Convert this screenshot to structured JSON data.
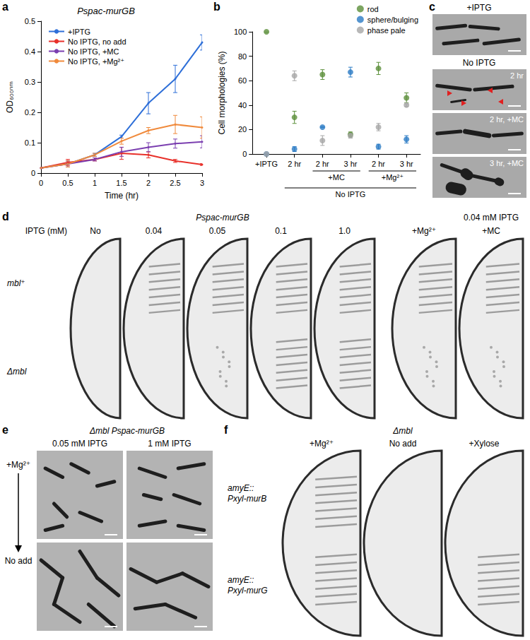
{
  "chart_data": [
    {
      "panel_label": "a",
      "type": "line",
      "title": "Pspac-murGB",
      "xlabel": "Time (hr)",
      "ylabel": "OD₆₀₀ₙₘ",
      "x": [
        0,
        0.5,
        1,
        1.5,
        2,
        2.5,
        3
      ],
      "xlim": [
        0,
        3
      ],
      "xticks": [
        0,
        0.5,
        1,
        1.5,
        2,
        2.5,
        3
      ],
      "ylim": [
        0,
        0.5
      ],
      "yticks": [
        0,
        0.1,
        0.2,
        0.3,
        0.4,
        0.5
      ],
      "grid": false,
      "legend": "upper left",
      "series": [
        {
          "name": "+IPTG",
          "color": "#2e6fd8",
          "values": [
            0.017,
            0.03,
            0.06,
            0.12,
            0.23,
            0.31,
            0.43
          ],
          "errors": [
            0,
            0.01,
            0.005,
            0.005,
            0.035,
            0.045,
            0.025
          ]
        },
        {
          "name": "No IPTG, no add",
          "color": "#e8302a",
          "values": [
            0.017,
            0.035,
            0.045,
            0.065,
            0.06,
            0.04,
            0.028
          ],
          "errors": [
            0,
            0.01,
            0.005,
            0.02,
            0.01,
            0.005,
            0.003
          ]
        },
        {
          "name": "No IPTG, +MC",
          "color": "#7b3fb0",
          "values": [
            0.017,
            0.03,
            0.045,
            0.07,
            0.085,
            0.097,
            0.103
          ],
          "errors": [
            0,
            0.01,
            0.005,
            0.015,
            0.015,
            0.015,
            0.02
          ]
        },
        {
          "name": "No IPTG, +Mg²⁺",
          "color": "#f08a3c",
          "values": [
            0.017,
            0.03,
            0.06,
            0.105,
            0.14,
            0.16,
            0.15
          ],
          "errors": [
            0,
            0.01,
            0.005,
            0.01,
            0.01,
            0.03,
            0.035
          ]
        }
      ]
    },
    {
      "panel_label": "b",
      "type": "scatter",
      "ylabel": "Cell morphologies (%)",
      "categories": [
        "+IPTG",
        "2 hr",
        "2 hr",
        "3 hr",
        "2 hr",
        "3 hr"
      ],
      "category_groups": [
        {
          "label": "No IPTG",
          "from": 1,
          "to": 5,
          "groups": [
            {
              "label": "+MC",
              "from": 2,
              "to": 3
            },
            {
              "label": "+Mg²⁺",
              "from": 4,
              "to": 5
            }
          ]
        }
      ],
      "ylim": [
        0,
        100
      ],
      "yticks": [
        0,
        20,
        40,
        60,
        80,
        100
      ],
      "grid": false,
      "legend": "upper right",
      "marker": "circle",
      "series": [
        {
          "name": "rod",
          "color": "#5b8f3a",
          "values": [
            100,
            30,
            65,
            16,
            70,
            46
          ],
          "errors": [
            0,
            5,
            4,
            2,
            5,
            4
          ]
        },
        {
          "name": "sphere/bulging",
          "color": "#2b7bc4",
          "values": [
            0,
            4,
            22,
            67,
            6,
            12
          ],
          "errors": [
            0,
            2,
            0,
            4,
            2,
            3
          ]
        },
        {
          "name": "phase pale",
          "color": "#a6a6a6",
          "values": [
            0,
            64,
            11,
            15,
            22,
            40
          ],
          "errors": [
            0,
            4,
            4,
            2,
            3,
            1
          ]
        }
      ]
    }
  ],
  "panels": {
    "c": {
      "panel_label": "c",
      "heading_top": "+IPTG",
      "heading_middle": "No IPTG",
      "image_captions": [
        "2 hr",
        "2 hr, +MC",
        "3 hr, +MC"
      ]
    },
    "d": {
      "panel_label": "d",
      "strain": "Pspac-murGB",
      "row_header": "IPTG (mM)",
      "columns": [
        "No",
        "0.04",
        "0.05",
        "0.1",
        "1.0"
      ],
      "group_title": "0.04 mM IPTG",
      "group_columns": [
        "+Mg²⁺",
        "+MC"
      ],
      "rows": [
        "mbl⁺",
        "Δmbl"
      ]
    },
    "e": {
      "panel_label": "e",
      "title": "Δmbl Pspac-murGB",
      "columns": [
        "0.05 mM IPTG",
        "1 mM IPTG"
      ],
      "rows": [
        "+Mg²⁺",
        "No add"
      ]
    },
    "f": {
      "panel_label": "f",
      "title": "Δmbl",
      "columns": [
        "+Mg²⁺",
        "No add",
        "+Xylose"
      ],
      "rows": [
        [
          "amyE::",
          "Pxyl-murB"
        ],
        [
          "amyE::",
          "Pxyl-murG"
        ]
      ]
    }
  }
}
